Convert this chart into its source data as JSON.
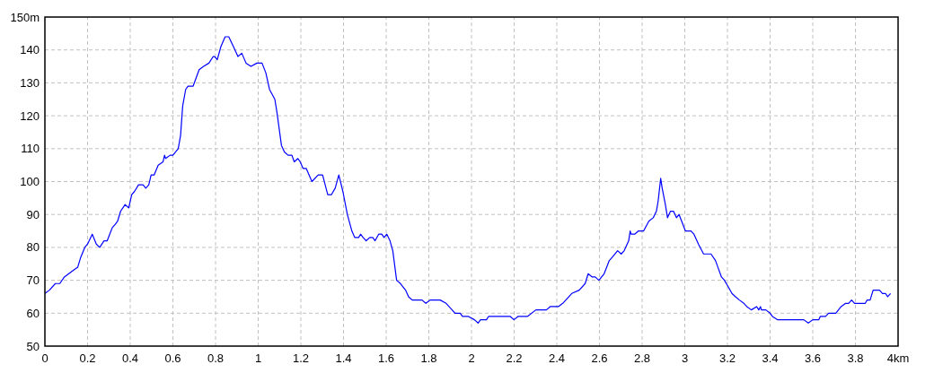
{
  "chart_data": {
    "type": "line",
    "x": [
      0,
      0.021,
      0.049,
      0.07,
      0.091,
      0.112,
      0.133,
      0.154,
      0.168,
      0.187,
      0.2,
      0.222,
      0.241,
      0.257,
      0.277,
      0.292,
      0.316,
      0.33,
      0.341,
      0.355,
      0.376,
      0.393,
      0.407,
      0.42,
      0.439,
      0.46,
      0.473,
      0.487,
      0.498,
      0.512,
      0.531,
      0.554,
      0.561,
      0.566,
      0.587,
      0.6,
      0.625,
      0.636,
      0.646,
      0.66,
      0.671,
      0.695,
      0.723,
      0.744,
      0.769,
      0.789,
      0.796,
      0.808,
      0.825,
      0.845,
      0.862,
      0.884,
      0.905,
      0.923,
      0.943,
      0.966,
      0.994,
      1.018,
      1.036,
      1.053,
      1.078,
      1.088,
      1.109,
      1.123,
      1.14,
      1.158,
      1.169,
      1.186,
      1.197,
      1.21,
      1.225,
      1.252,
      1.281,
      1.302,
      1.326,
      1.343,
      1.361,
      1.378,
      1.397,
      1.418,
      1.439,
      1.453,
      1.471,
      1.48,
      1.492,
      1.506,
      1.523,
      1.537,
      1.548,
      1.565,
      1.579,
      1.59,
      1.603,
      1.618,
      1.631,
      1.649,
      1.667,
      1.691,
      1.705,
      1.722,
      1.768,
      1.786,
      1.806,
      1.853,
      1.881,
      1.909,
      1.923,
      1.947,
      1.958,
      1.986,
      2.014,
      2.031,
      2.042,
      2.07,
      2.08,
      2.182,
      2.199,
      2.218,
      2.262,
      2.302,
      2.351,
      2.369,
      2.407,
      2.428,
      2.47,
      2.505,
      2.533,
      2.547,
      2.566,
      2.58,
      2.597,
      2.622,
      2.646,
      2.66,
      2.685,
      2.702,
      2.716,
      2.737,
      2.744,
      2.748,
      2.765,
      2.783,
      2.807,
      2.832,
      2.852,
      2.867,
      2.875,
      2.887,
      2.894,
      2.909,
      2.919,
      2.933,
      2.947,
      2.961,
      2.973,
      2.985,
      3.003,
      3.029,
      3.043,
      3.064,
      3.088,
      3.106,
      3.123,
      3.144,
      3.155,
      3.172,
      3.186,
      3.204,
      3.221,
      3.238,
      3.256,
      3.277,
      3.291,
      3.312,
      3.337,
      3.347,
      3.355,
      3.359,
      3.38,
      3.4,
      3.411,
      3.436,
      3.49,
      3.558,
      3.579,
      3.6,
      3.628,
      3.635,
      3.66,
      3.674,
      3.708,
      3.733,
      3.754,
      3.768,
      3.782,
      3.796,
      3.81,
      3.846,
      3.855,
      3.869,
      3.883,
      3.913,
      3.927,
      3.941,
      3.951,
      3.965
    ],
    "series": [
      {
        "color": "#0000ff",
        "values": [
          66,
          67,
          69,
          69,
          71,
          72,
          73,
          74,
          77,
          80,
          81,
          84,
          81,
          80,
          82,
          82,
          86,
          87,
          88,
          91,
          93,
          92,
          96,
          97,
          99,
          99,
          98,
          99,
          102,
          102,
          105,
          106,
          108,
          107,
          108,
          108,
          110,
          114,
          123,
          128,
          129,
          129,
          134,
          135,
          136,
          138,
          138,
          137,
          141,
          144,
          144,
          141,
          138,
          139,
          136,
          135,
          136,
          136,
          133,
          128,
          125,
          121,
          111,
          109,
          108,
          108,
          106,
          107,
          106,
          104,
          104,
          100,
          102,
          102,
          96,
          96,
          98,
          102,
          97,
          90,
          85,
          83,
          83,
          84,
          83,
          82,
          83,
          83,
          82,
          84,
          84,
          83,
          84,
          82,
          79,
          70,
          69,
          67,
          65,
          64,
          64,
          63,
          64,
          64,
          63,
          61,
          60,
          60,
          59,
          59,
          58,
          57,
          58,
          58,
          59,
          59,
          58,
          59,
          59,
          61,
          61,
          62,
          62,
          63,
          66,
          67,
          69,
          72,
          71,
          71,
          70,
          72,
          76,
          77,
          79,
          78,
          79,
          82,
          85,
          84,
          84,
          85,
          85,
          88,
          89,
          91,
          94,
          101,
          98,
          93,
          89,
          91,
          91,
          89,
          90,
          88,
          85,
          85,
          84,
          81,
          78,
          78,
          78,
          76,
          74,
          71,
          70,
          68,
          66,
          65,
          64,
          63,
          62,
          61,
          62,
          61,
          62,
          61,
          61,
          60,
          59,
          58,
          58,
          58,
          57,
          58,
          58,
          59,
          59,
          60,
          60,
          62,
          63,
          63,
          64,
          63,
          63,
          63,
          64,
          64,
          67,
          67,
          66,
          66,
          65,
          66
        ]
      }
    ],
    "xlim": [
      0,
      4
    ],
    "ylim": [
      50,
      150
    ],
    "xticks": [
      0,
      0.2,
      0.4,
      0.6,
      0.8,
      1,
      1.2,
      1.4,
      1.6,
      1.8,
      2,
      2.2,
      2.4,
      2.6,
      2.8,
      3,
      3.2,
      3.4,
      3.6,
      3.8,
      {
        "value": 4,
        "label": "4km"
      }
    ],
    "yticks": [
      50,
      60,
      70,
      80,
      90,
      100,
      110,
      120,
      130,
      140,
      {
        "value": 150,
        "label": "150m"
      }
    ],
    "grid": true
  }
}
